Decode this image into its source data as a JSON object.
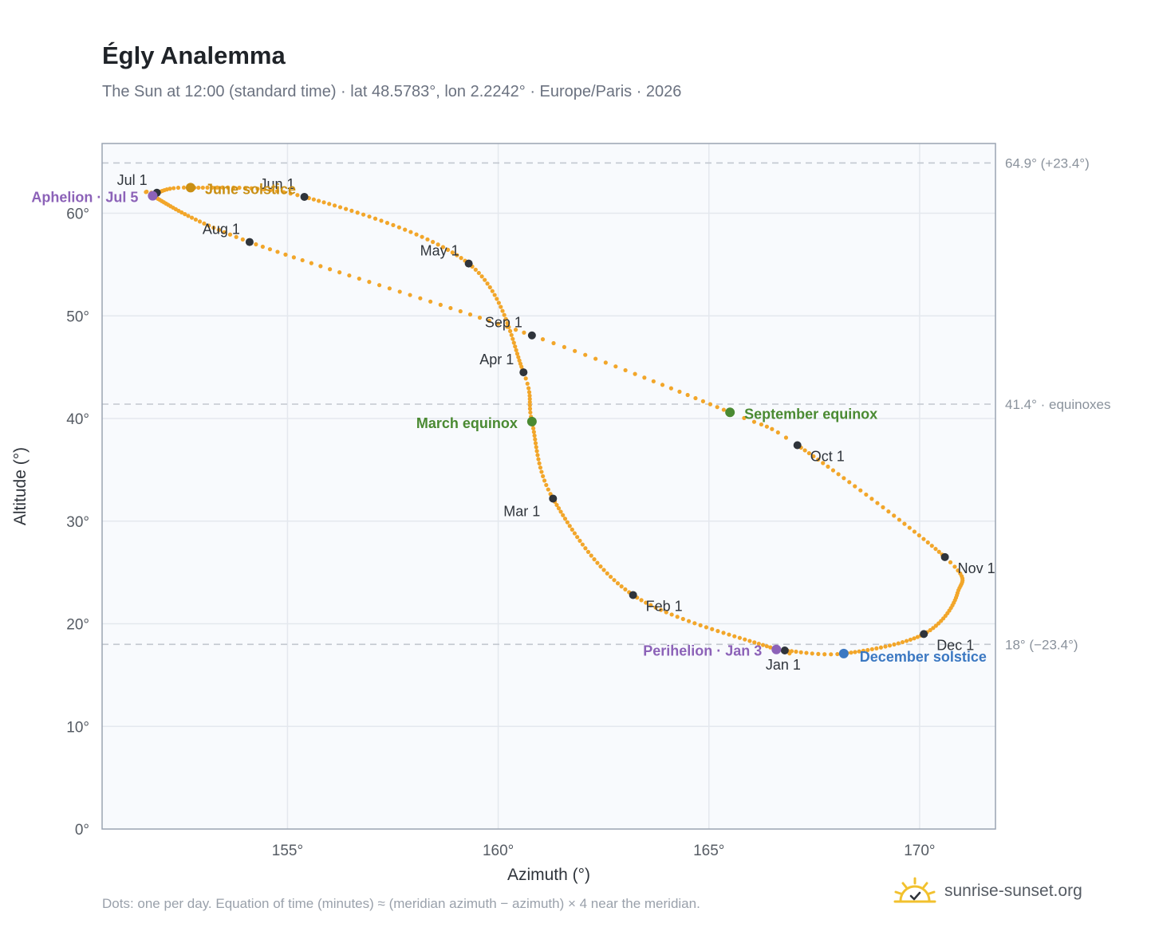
{
  "title": "Égly Analemma",
  "subtitle": "The Sun at 12:00 (standard time) · lat 48.5783°, lon 2.2242° · Europe/Paris · 2026",
  "footnote": "Dots: one per day. Equation of time (minutes) ≈ (meridian azimuth − azimuth) × 4 near the meridian.",
  "brand": {
    "text": "sunrise-sunset.org",
    "icon": "sun-logo-icon"
  },
  "colors": {
    "curve": "#f2a62a",
    "month_marker": "#2f343b",
    "solstice_june": "#c98f14",
    "solstice_december": "#3b78c2",
    "equinox": "#4a8a32",
    "apsis": "#8c62b8",
    "plot_bg": "#f8fafd",
    "grid": "#e4e8ee",
    "frame": "#9aa4b2",
    "refline": "#c2c7cf"
  },
  "chart_data": {
    "type": "scatter",
    "xlabel": "Azimuth (°)",
    "ylabel": "Altitude (°)",
    "xlim": [
      150.6,
      171.8
    ],
    "ylim": [
      0,
      66.8
    ],
    "xticks": [
      155,
      160,
      165,
      170
    ],
    "xtick_labels": [
      "155°",
      "160°",
      "165°",
      "170°"
    ],
    "yticks": [
      0,
      10,
      20,
      30,
      40,
      50,
      60
    ],
    "ytick_labels": [
      "0°",
      "10°",
      "20°",
      "30°",
      "40°",
      "50°",
      "60°"
    ],
    "grid": true,
    "reference_lines": [
      {
        "y": 64.9,
        "label": "64.9° (+23.4°)"
      },
      {
        "y": 41.4,
        "label": "41.4° · equinoxes"
      },
      {
        "y": 18.0,
        "label": "18° (−23.4°)"
      }
    ],
    "month_markers": [
      {
        "label": "Jan 1",
        "day": 1,
        "az": 166.8,
        "alt": 17.4,
        "pos": "below"
      },
      {
        "label": "Feb 1",
        "day": 32,
        "az": 163.2,
        "alt": 22.8,
        "pos": "below-right"
      },
      {
        "label": "Mar 1",
        "day": 60,
        "az": 161.3,
        "alt": 32.2,
        "pos": "below-left"
      },
      {
        "label": "Apr 1",
        "day": 91,
        "az": 160.6,
        "alt": 44.5,
        "pos": "above-left"
      },
      {
        "label": "May 1",
        "day": 121,
        "az": 159.3,
        "alt": 55.1,
        "pos": "above-left"
      },
      {
        "label": "Jun 1",
        "day": 152,
        "az": 155.4,
        "alt": 61.6,
        "pos": "above-left"
      },
      {
        "label": "Jul 1",
        "day": 182,
        "az": 151.9,
        "alt": 62.0,
        "pos": "above-left"
      },
      {
        "label": "Aug 1",
        "day": 213,
        "az": 154.1,
        "alt": 57.2,
        "pos": "above-left"
      },
      {
        "label": "Sep 1",
        "day": 244,
        "az": 160.8,
        "alt": 48.1,
        "pos": "above-left"
      },
      {
        "label": "Oct 1",
        "day": 274,
        "az": 167.1,
        "alt": 37.4,
        "pos": "below-right"
      },
      {
        "label": "Nov 1",
        "day": 305,
        "az": 170.6,
        "alt": 26.5,
        "pos": "below-right"
      },
      {
        "label": "Dec 1",
        "day": 335,
        "az": 170.1,
        "alt": 19.0,
        "pos": "below-right"
      }
    ],
    "events": [
      {
        "label": "June solstice",
        "day": 172,
        "az": 152.7,
        "alt": 62.5,
        "color_key": "solstice_june",
        "pos": "right"
      },
      {
        "label": "Aphelion · Jul 5",
        "day": 186,
        "az": 151.8,
        "alt": 61.7,
        "color_key": "apsis",
        "pos": "left"
      },
      {
        "label": "March equinox",
        "day": 79,
        "az": 160.8,
        "alt": 39.7,
        "color_key": "equinox",
        "pos": "left"
      },
      {
        "label": "September equinox",
        "day": 266,
        "az": 165.5,
        "alt": 40.6,
        "color_key": "equinox",
        "pos": "right"
      },
      {
        "label": "Perihelion · Jan 3",
        "day": 3,
        "az": 166.6,
        "alt": 17.5,
        "color_key": "apsis",
        "pos": "left"
      },
      {
        "label": "December solstice",
        "day": 355,
        "az": 168.2,
        "alt": 17.1,
        "color_key": "solstice_december",
        "pos": "right-below"
      }
    ],
    "path_anchors": [
      {
        "day": 1,
        "az": 166.8,
        "alt": 17.4
      },
      {
        "day": 3,
        "az": 166.6,
        "alt": 17.5
      },
      {
        "day": 32,
        "az": 163.2,
        "alt": 22.8
      },
      {
        "day": 60,
        "az": 161.3,
        "alt": 32.2
      },
      {
        "day": 79,
        "az": 160.8,
        "alt": 39.7
      },
      {
        "day": 91,
        "az": 160.6,
        "alt": 44.5
      },
      {
        "day": 121,
        "az": 159.3,
        "alt": 55.1
      },
      {
        "day": 152,
        "az": 155.4,
        "alt": 61.6
      },
      {
        "day": 172,
        "az": 152.7,
        "alt": 62.5
      },
      {
        "day": 182,
        "az": 151.9,
        "alt": 62.0
      },
      {
        "day": 186,
        "az": 151.8,
        "alt": 61.7
      },
      {
        "day": 213,
        "az": 154.1,
        "alt": 57.2
      },
      {
        "day": 244,
        "az": 160.8,
        "alt": 48.1
      },
      {
        "day": 266,
        "az": 165.5,
        "alt": 40.6
      },
      {
        "day": 274,
        "az": 167.1,
        "alt": 37.4
      },
      {
        "day": 305,
        "az": 170.6,
        "alt": 26.5
      },
      {
        "day": 318,
        "az": 170.9,
        "alt": 23.0
      },
      {
        "day": 335,
        "az": 170.1,
        "alt": 19.0
      },
      {
        "day": 355,
        "az": 168.2,
        "alt": 17.1
      },
      {
        "day": 366,
        "az": 166.8,
        "alt": 17.4
      }
    ]
  }
}
